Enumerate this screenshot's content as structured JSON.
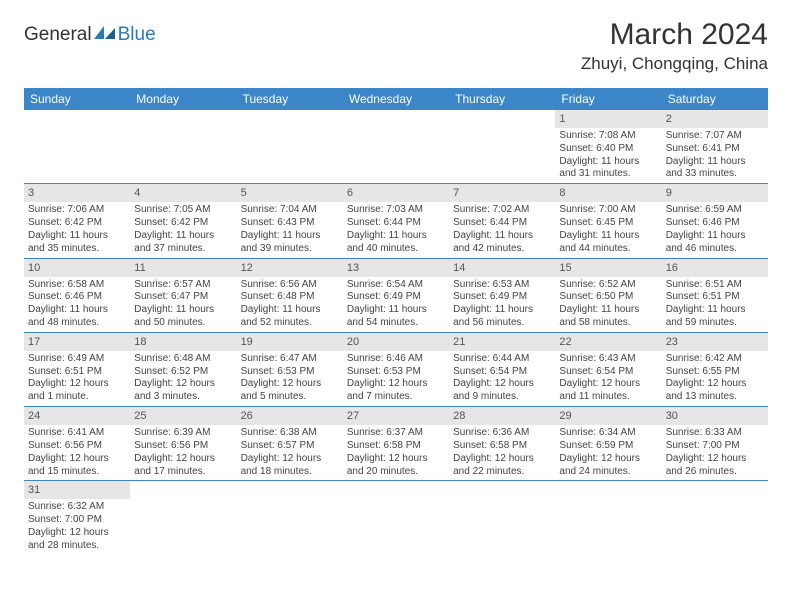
{
  "logo": {
    "text1": "General",
    "text2": "Blue"
  },
  "title": "March 2024",
  "location": "Zhuyi, Chongqing, China",
  "colors": {
    "header_bg": "#3a86c8",
    "header_text": "#ffffff",
    "daynum_bg": "#e6e6e6",
    "border": "#3a86c8",
    "body_text": "#444444",
    "title_text": "#333333"
  },
  "day_headers": [
    "Sunday",
    "Monday",
    "Tuesday",
    "Wednesday",
    "Thursday",
    "Friday",
    "Saturday"
  ],
  "weeks": [
    [
      {
        "n": "",
        "sr": "",
        "ss": "",
        "dl1": "",
        "dl2": ""
      },
      {
        "n": "",
        "sr": "",
        "ss": "",
        "dl1": "",
        "dl2": ""
      },
      {
        "n": "",
        "sr": "",
        "ss": "",
        "dl1": "",
        "dl2": ""
      },
      {
        "n": "",
        "sr": "",
        "ss": "",
        "dl1": "",
        "dl2": ""
      },
      {
        "n": "",
        "sr": "",
        "ss": "",
        "dl1": "",
        "dl2": ""
      },
      {
        "n": "1",
        "sr": "Sunrise: 7:08 AM",
        "ss": "Sunset: 6:40 PM",
        "dl1": "Daylight: 11 hours",
        "dl2": "and 31 minutes."
      },
      {
        "n": "2",
        "sr": "Sunrise: 7:07 AM",
        "ss": "Sunset: 6:41 PM",
        "dl1": "Daylight: 11 hours",
        "dl2": "and 33 minutes."
      }
    ],
    [
      {
        "n": "3",
        "sr": "Sunrise: 7:06 AM",
        "ss": "Sunset: 6:42 PM",
        "dl1": "Daylight: 11 hours",
        "dl2": "and 35 minutes."
      },
      {
        "n": "4",
        "sr": "Sunrise: 7:05 AM",
        "ss": "Sunset: 6:42 PM",
        "dl1": "Daylight: 11 hours",
        "dl2": "and 37 minutes."
      },
      {
        "n": "5",
        "sr": "Sunrise: 7:04 AM",
        "ss": "Sunset: 6:43 PM",
        "dl1": "Daylight: 11 hours",
        "dl2": "and 39 minutes."
      },
      {
        "n": "6",
        "sr": "Sunrise: 7:03 AM",
        "ss": "Sunset: 6:44 PM",
        "dl1": "Daylight: 11 hours",
        "dl2": "and 40 minutes."
      },
      {
        "n": "7",
        "sr": "Sunrise: 7:02 AM",
        "ss": "Sunset: 6:44 PM",
        "dl1": "Daylight: 11 hours",
        "dl2": "and 42 minutes."
      },
      {
        "n": "8",
        "sr": "Sunrise: 7:00 AM",
        "ss": "Sunset: 6:45 PM",
        "dl1": "Daylight: 11 hours",
        "dl2": "and 44 minutes."
      },
      {
        "n": "9",
        "sr": "Sunrise: 6:59 AM",
        "ss": "Sunset: 6:46 PM",
        "dl1": "Daylight: 11 hours",
        "dl2": "and 46 minutes."
      }
    ],
    [
      {
        "n": "10",
        "sr": "Sunrise: 6:58 AM",
        "ss": "Sunset: 6:46 PM",
        "dl1": "Daylight: 11 hours",
        "dl2": "and 48 minutes."
      },
      {
        "n": "11",
        "sr": "Sunrise: 6:57 AM",
        "ss": "Sunset: 6:47 PM",
        "dl1": "Daylight: 11 hours",
        "dl2": "and 50 minutes."
      },
      {
        "n": "12",
        "sr": "Sunrise: 6:56 AM",
        "ss": "Sunset: 6:48 PM",
        "dl1": "Daylight: 11 hours",
        "dl2": "and 52 minutes."
      },
      {
        "n": "13",
        "sr": "Sunrise: 6:54 AM",
        "ss": "Sunset: 6:49 PM",
        "dl1": "Daylight: 11 hours",
        "dl2": "and 54 minutes."
      },
      {
        "n": "14",
        "sr": "Sunrise: 6:53 AM",
        "ss": "Sunset: 6:49 PM",
        "dl1": "Daylight: 11 hours",
        "dl2": "and 56 minutes."
      },
      {
        "n": "15",
        "sr": "Sunrise: 6:52 AM",
        "ss": "Sunset: 6:50 PM",
        "dl1": "Daylight: 11 hours",
        "dl2": "and 58 minutes."
      },
      {
        "n": "16",
        "sr": "Sunrise: 6:51 AM",
        "ss": "Sunset: 6:51 PM",
        "dl1": "Daylight: 11 hours",
        "dl2": "and 59 minutes."
      }
    ],
    [
      {
        "n": "17",
        "sr": "Sunrise: 6:49 AM",
        "ss": "Sunset: 6:51 PM",
        "dl1": "Daylight: 12 hours",
        "dl2": "and 1 minute."
      },
      {
        "n": "18",
        "sr": "Sunrise: 6:48 AM",
        "ss": "Sunset: 6:52 PM",
        "dl1": "Daylight: 12 hours",
        "dl2": "and 3 minutes."
      },
      {
        "n": "19",
        "sr": "Sunrise: 6:47 AM",
        "ss": "Sunset: 6:53 PM",
        "dl1": "Daylight: 12 hours",
        "dl2": "and 5 minutes."
      },
      {
        "n": "20",
        "sr": "Sunrise: 6:46 AM",
        "ss": "Sunset: 6:53 PM",
        "dl1": "Daylight: 12 hours",
        "dl2": "and 7 minutes."
      },
      {
        "n": "21",
        "sr": "Sunrise: 6:44 AM",
        "ss": "Sunset: 6:54 PM",
        "dl1": "Daylight: 12 hours",
        "dl2": "and 9 minutes."
      },
      {
        "n": "22",
        "sr": "Sunrise: 6:43 AM",
        "ss": "Sunset: 6:54 PM",
        "dl1": "Daylight: 12 hours",
        "dl2": "and 11 minutes."
      },
      {
        "n": "23",
        "sr": "Sunrise: 6:42 AM",
        "ss": "Sunset: 6:55 PM",
        "dl1": "Daylight: 12 hours",
        "dl2": "and 13 minutes."
      }
    ],
    [
      {
        "n": "24",
        "sr": "Sunrise: 6:41 AM",
        "ss": "Sunset: 6:56 PM",
        "dl1": "Daylight: 12 hours",
        "dl2": "and 15 minutes."
      },
      {
        "n": "25",
        "sr": "Sunrise: 6:39 AM",
        "ss": "Sunset: 6:56 PM",
        "dl1": "Daylight: 12 hours",
        "dl2": "and 17 minutes."
      },
      {
        "n": "26",
        "sr": "Sunrise: 6:38 AM",
        "ss": "Sunset: 6:57 PM",
        "dl1": "Daylight: 12 hours",
        "dl2": "and 18 minutes."
      },
      {
        "n": "27",
        "sr": "Sunrise: 6:37 AM",
        "ss": "Sunset: 6:58 PM",
        "dl1": "Daylight: 12 hours",
        "dl2": "and 20 minutes."
      },
      {
        "n": "28",
        "sr": "Sunrise: 6:36 AM",
        "ss": "Sunset: 6:58 PM",
        "dl1": "Daylight: 12 hours",
        "dl2": "and 22 minutes."
      },
      {
        "n": "29",
        "sr": "Sunrise: 6:34 AM",
        "ss": "Sunset: 6:59 PM",
        "dl1": "Daylight: 12 hours",
        "dl2": "and 24 minutes."
      },
      {
        "n": "30",
        "sr": "Sunrise: 6:33 AM",
        "ss": "Sunset: 7:00 PM",
        "dl1": "Daylight: 12 hours",
        "dl2": "and 26 minutes."
      }
    ],
    [
      {
        "n": "31",
        "sr": "Sunrise: 6:32 AM",
        "ss": "Sunset: 7:00 PM",
        "dl1": "Daylight: 12 hours",
        "dl2": "and 28 minutes."
      },
      {
        "n": "",
        "sr": "",
        "ss": "",
        "dl1": "",
        "dl2": ""
      },
      {
        "n": "",
        "sr": "",
        "ss": "",
        "dl1": "",
        "dl2": ""
      },
      {
        "n": "",
        "sr": "",
        "ss": "",
        "dl1": "",
        "dl2": ""
      },
      {
        "n": "",
        "sr": "",
        "ss": "",
        "dl1": "",
        "dl2": ""
      },
      {
        "n": "",
        "sr": "",
        "ss": "",
        "dl1": "",
        "dl2": ""
      },
      {
        "n": "",
        "sr": "",
        "ss": "",
        "dl1": "",
        "dl2": ""
      }
    ]
  ]
}
